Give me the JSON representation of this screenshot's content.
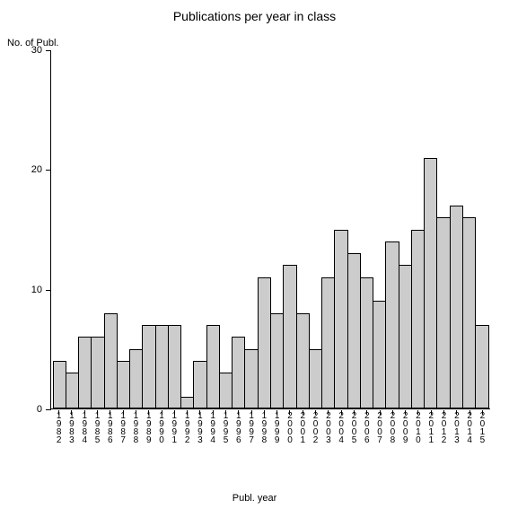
{
  "chart": {
    "type": "bar",
    "title": "Publications per year in class",
    "title_fontsize": 14,
    "y_axis_label": "No. of Publ.",
    "x_axis_label": "Publ. year",
    "label_fontsize": 11,
    "categories": [
      "1982",
      "1983",
      "1984",
      "1985",
      "1986",
      "1987",
      "1988",
      "1989",
      "1990",
      "1991",
      "1992",
      "1993",
      "1994",
      "1995",
      "1996",
      "1997",
      "1998",
      "1999",
      "2000",
      "2001",
      "2002",
      "2003",
      "2004",
      "2005",
      "2006",
      "2007",
      "2008",
      "2009",
      "2010",
      "2011",
      "2012",
      "2013",
      "2014",
      "2015"
    ],
    "values": [
      4,
      3,
      6,
      6,
      8,
      4,
      5,
      7,
      7,
      7,
      1,
      4,
      7,
      3,
      6,
      5,
      11,
      8,
      12,
      8,
      5,
      11,
      15,
      13,
      11,
      9,
      14,
      12,
      15,
      21,
      16,
      17,
      16,
      7
    ],
    "bar_color": "#cccccc",
    "bar_border_color": "#000000",
    "background_color": "#ffffff",
    "axis_color": "#000000",
    "ylim": [
      0,
      30
    ],
    "ytick_step": 10,
    "yticks": [
      0,
      10,
      20,
      30
    ],
    "bar_width": 1.0,
    "tick_fontsize": 11,
    "x_tick_fontsize": 10
  }
}
